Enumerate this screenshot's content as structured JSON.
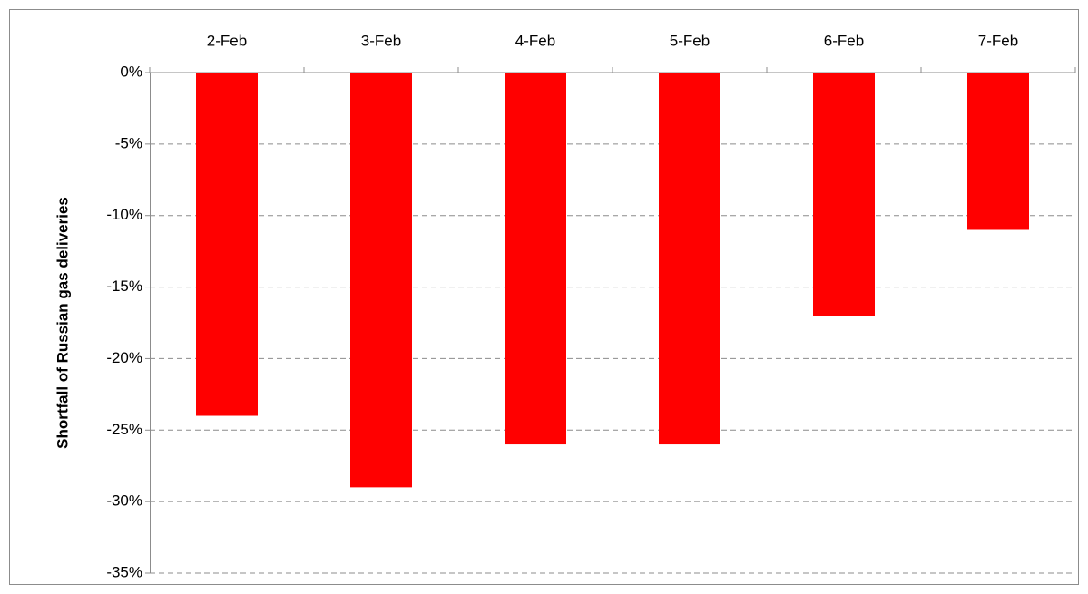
{
  "chart_data": {
    "type": "bar",
    "y_label": "Shortfall of Russian gas deliveries",
    "categories": [
      "2-Feb",
      "3-Feb",
      "4-Feb",
      "5-Feb",
      "6-Feb",
      "7-Feb"
    ],
    "values": [
      -24,
      -29,
      -26,
      -26,
      -17,
      -11
    ],
    "color": "#ff0000",
    "ylim": [
      -35,
      0
    ],
    "yticks": [
      {
        "value": 0,
        "label": "0%"
      },
      {
        "value": -5,
        "label": "-5%"
      },
      {
        "value": -10,
        "label": "-10%"
      },
      {
        "value": -15,
        "label": "-15%"
      },
      {
        "value": -20,
        "label": "-20%"
      },
      {
        "value": -25,
        "label": "-25%"
      },
      {
        "value": -30,
        "label": "-30%"
      },
      {
        "value": -35,
        "label": "-35%"
      }
    ],
    "grid": true
  }
}
